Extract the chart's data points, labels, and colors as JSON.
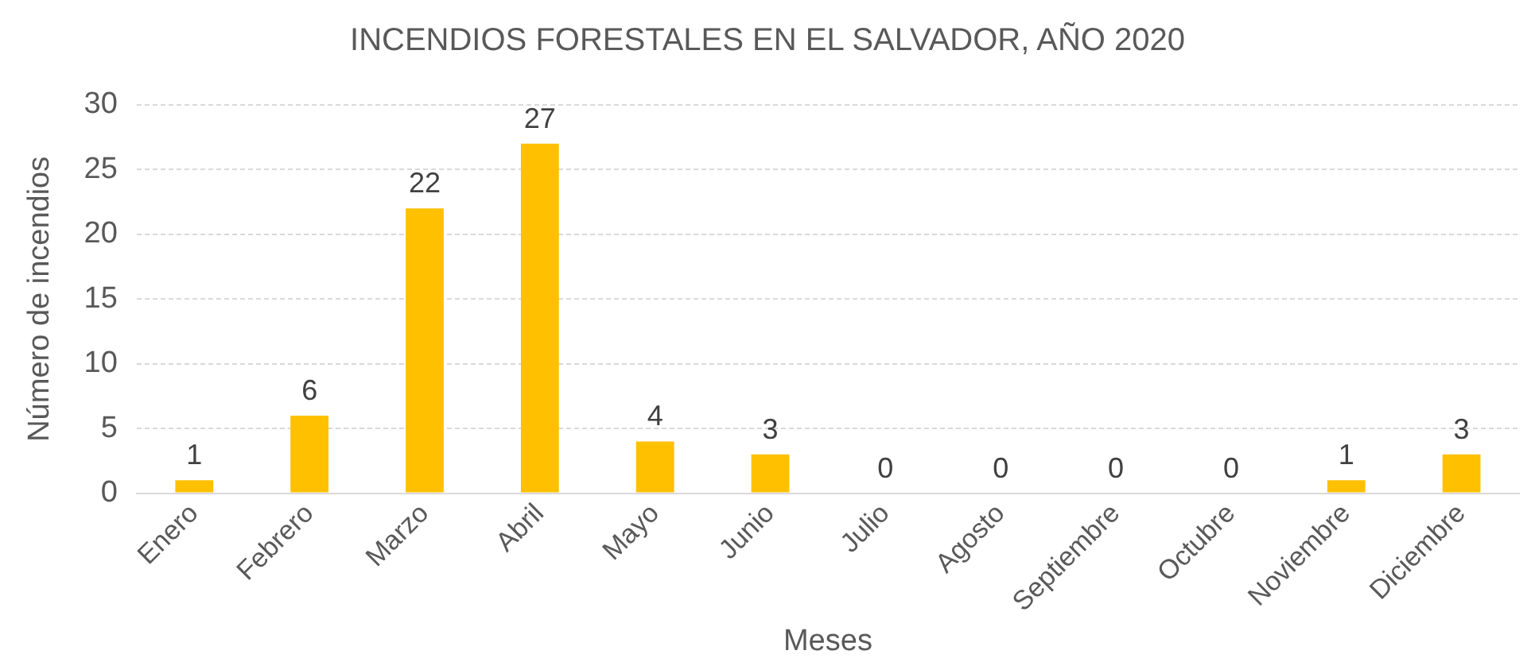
{
  "chart_data": {
    "type": "bar",
    "title": "INCENDIOS FORESTALES EN EL SALVADOR, AÑO 2020",
    "xlabel": "Meses",
    "ylabel": "Número de incendios",
    "categories": [
      "Enero",
      "Febrero",
      "Marzo",
      "Abril",
      "Mayo",
      "Junio",
      "Julio",
      "Agosto",
      "Septiembre",
      "Octubre",
      "Noviembre",
      "Diciembre"
    ],
    "values": [
      1,
      6,
      22,
      27,
      4,
      3,
      0,
      0,
      0,
      0,
      1,
      3
    ],
    "color": "#ffc000",
    "ylim": [
      0,
      30
    ],
    "yticks": [
      0,
      5,
      10,
      15,
      20,
      25,
      30
    ],
    "grid": "y",
    "data_labels": true,
    "legend": false
  }
}
